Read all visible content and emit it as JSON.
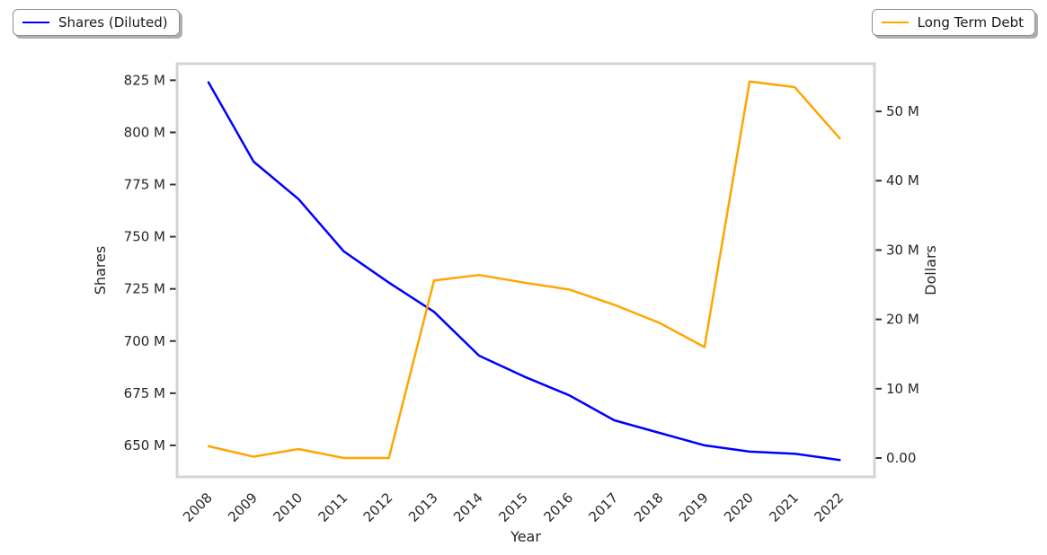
{
  "chart": {
    "legend_left": {
      "label": "Shares (Diluted)",
      "color": "#0000ff"
    },
    "legend_right": {
      "label": "Long Term Debt",
      "color": "#ffa500"
    }
  },
  "chart_data": {
    "type": "line",
    "title": "",
    "x": [
      "2008",
      "2009",
      "2010",
      "2011",
      "2012",
      "2013",
      "2014",
      "2015",
      "2016",
      "2017",
      "2018",
      "2019",
      "2020",
      "2021",
      "2022"
    ],
    "xlabel": "Year",
    "ylabel_left": "Shares",
    "ylabel_right": "Dollars",
    "grid": false,
    "legend_position": "outside-top-left / outside-top-right",
    "yticks_left": {
      "values": [
        825,
        800,
        775,
        750,
        725,
        700,
        675,
        650
      ],
      "labels": [
        "825 M",
        "800 M",
        "775 M",
        "750 M",
        "725 M",
        "700 M",
        "675 M",
        "650 M"
      ]
    },
    "yticks_right": {
      "values": [
        50,
        40,
        30,
        20,
        10,
        0
      ],
      "labels": [
        "50 M",
        "40 M",
        "30 M",
        "20 M",
        "10 M",
        "0.00"
      ]
    },
    "ylim_left": [
      634.9,
      832.9
    ],
    "ylim_right": [
      -2.72,
      56.87
    ],
    "series": [
      {
        "name": "Shares (Diluted)",
        "axis": "left",
        "color": "#0000ff",
        "unit": "shares (millions)",
        "values": [
          824,
          786,
          768,
          743,
          728,
          714,
          693,
          683,
          674,
          662,
          656,
          650,
          647,
          646,
          643
        ]
      },
      {
        "name": "Long Term Debt",
        "axis": "right",
        "color": "#ffa500",
        "unit": "dollars (millions)",
        "values": [
          1.7,
          0.2,
          1.3,
          0.0,
          0.0,
          25.6,
          26.4,
          25.3,
          24.3,
          22.1,
          19.5,
          16.0,
          54.3,
          53.5,
          46.1
        ]
      }
    ]
  }
}
